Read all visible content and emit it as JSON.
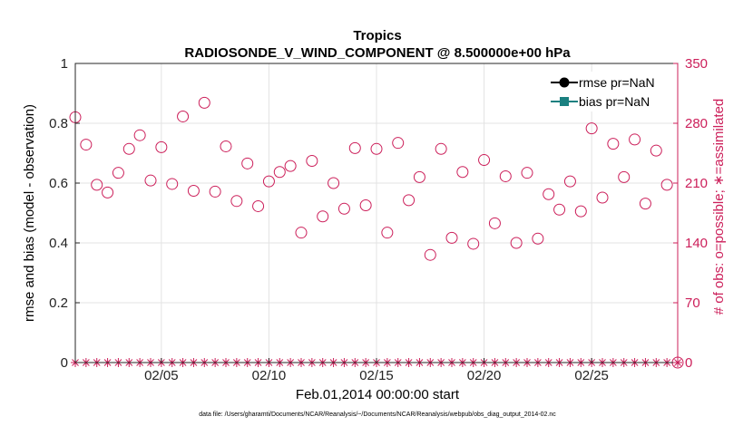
{
  "chart_data": {
    "type": "scatter",
    "title": "Tropics",
    "subtitle": "RADIOSONDE_V_WIND_COMPONENT @ 8.500000e+00 hPa",
    "xlabel": "Feb.01,2014 00:00:00 start",
    "ylabel": "rmse and bias (model - observation)",
    "ylabel_right": "# of obs: o=possible; ∗=assimilated",
    "x_range": [
      1,
      29
    ],
    "ylim": [
      0,
      1
    ],
    "ylim_right": [
      0,
      350
    ],
    "x_ticks": [
      5,
      10,
      15,
      20,
      25
    ],
    "x_tick_labels": [
      "02/05",
      "02/10",
      "02/15",
      "02/20",
      "02/25"
    ],
    "y_ticks": [
      0,
      0.2,
      0.4,
      0.6,
      0.8,
      1
    ],
    "y_tick_labels": [
      "0",
      "0.2",
      "0.4",
      "0.6",
      "0.8",
      "1"
    ],
    "y_ticks_right": [
      0,
      70,
      140,
      210,
      280,
      350
    ],
    "y_tick_labels_right": [
      "0",
      "70",
      "140",
      "210",
      "280",
      "350"
    ],
    "grid": true,
    "legend_position": "top-right",
    "series": [
      {
        "name": "rmse pr=NaN",
        "color": "#000000",
        "marker": "filled-circle",
        "values": []
      },
      {
        "name": "bias pr=NaN",
        "color": "#1a8080",
        "marker": "filled-square",
        "values": []
      },
      {
        "name": "possible obs",
        "axis": "right",
        "color": "#cc1f5a",
        "marker": "open-circle",
        "x": [
          1.0,
          1.5,
          2.0,
          2.5,
          3.0,
          3.5,
          4.0,
          4.5,
          5.0,
          5.5,
          6.0,
          6.5,
          7.0,
          7.5,
          8.0,
          8.5,
          9.0,
          9.5,
          10.0,
          10.5,
          11.0,
          11.5,
          12.0,
          12.5,
          13.0,
          13.5,
          14.0,
          14.5,
          15.0,
          15.5,
          16.0,
          16.5,
          17.0,
          17.5,
          18.0,
          18.5,
          19.0,
          19.5,
          20.0,
          20.5,
          21.0,
          21.5,
          22.0,
          22.5,
          23.0,
          23.5,
          24.0,
          24.5,
          25.0,
          25.5,
          26.0,
          26.5,
          27.0,
          27.5,
          28.0,
          28.5,
          29.0
        ],
        "values": [
          287,
          255,
          208,
          199,
          222,
          250,
          266,
          213,
          252,
          209,
          288,
          201,
          304,
          200,
          253,
          189,
          233,
          183,
          212,
          223,
          230,
          152,
          236,
          171,
          210,
          180,
          251,
          184,
          250,
          152,
          257,
          190,
          217,
          126,
          250,
          146,
          223,
          139,
          237,
          163,
          218,
          140,
          222,
          145,
          197,
          179,
          212,
          177,
          274,
          193,
          256,
          217,
          261,
          186,
          248,
          208,
          0
        ]
      },
      {
        "name": "assimilated obs",
        "axis": "right",
        "color": "#cc1f5a",
        "marker": "asterisk",
        "x": [
          1.0,
          1.5,
          2.0,
          2.5,
          3.0,
          3.5,
          4.0,
          4.5,
          5.0,
          5.5,
          6.0,
          6.5,
          7.0,
          7.5,
          8.0,
          8.5,
          9.0,
          9.5,
          10.0,
          10.5,
          11.0,
          11.5,
          12.0,
          12.5,
          13.0,
          13.5,
          14.0,
          14.5,
          15.0,
          15.5,
          16.0,
          16.5,
          17.0,
          17.5,
          18.0,
          18.5,
          19.0,
          19.5,
          20.0,
          20.5,
          21.0,
          21.5,
          22.0,
          22.5,
          23.0,
          23.5,
          24.0,
          24.5,
          25.0,
          25.5,
          26.0,
          26.5,
          27.0,
          27.5,
          28.0,
          28.5,
          29.0
        ],
        "values": [
          0,
          0,
          0,
          0,
          0,
          0,
          0,
          0,
          0,
          0,
          0,
          0,
          0,
          0,
          0,
          0,
          0,
          0,
          0,
          0,
          0,
          0,
          0,
          0,
          0,
          0,
          0,
          0,
          0,
          0,
          0,
          0,
          0,
          0,
          0,
          0,
          0,
          0,
          0,
          0,
          0,
          0,
          0,
          0,
          0,
          0,
          0,
          0,
          0,
          0,
          0,
          0,
          0,
          0,
          0,
          0,
          0
        ]
      }
    ]
  },
  "footer": "data file: /Users/gharamti/Documents/NCAR/Reanalysis/~/Documents/NCAR/Reanalysis/webpub/obs_diag_output_2014-02.nc"
}
